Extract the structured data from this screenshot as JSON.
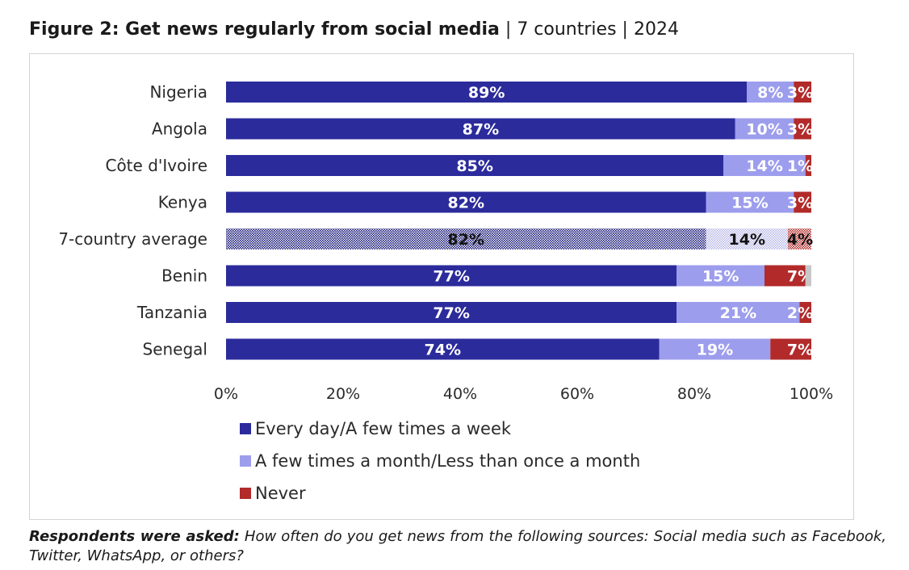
{
  "header": {
    "title_main": "Figure 2: Get news regularly from social media",
    "title_sep1": "|",
    "title_scope": "7 countries",
    "title_sep2": "|",
    "title_year": "2024"
  },
  "footnote": {
    "lead": "Respondents were asked:",
    "question": "How often do you get news from the following sources: Social media such as Facebook, Twitter, WhatsApp, or others?"
  },
  "colors": {
    "series": [
      "#2b2b9c",
      "#9d9ded",
      "#b22a2a"
    ],
    "other": "#c8c8c8",
    "average_pattern": "#1c1c7a"
  },
  "chart_data": {
    "type": "bar",
    "orientation": "horizontal",
    "stacked": true,
    "title": "Get news regularly from social media",
    "categories": [
      "Nigeria",
      "Angola",
      "Côte d'Ivoire",
      "Kenya",
      "7-country average",
      "Benin",
      "Tanzania",
      "Senegal"
    ],
    "highlight_category": "7-country average",
    "series": [
      {
        "name": "Every day/A few times a week",
        "values": [
          89,
          87,
          85,
          82,
          82,
          77,
          77,
          74
        ],
        "labels": [
          "89%",
          "87%",
          "85%",
          "82%",
          "82%",
          "77%",
          "77%",
          "74%"
        ]
      },
      {
        "name": "A few times a month/Less than once a month",
        "values": [
          8,
          10,
          14,
          15,
          14,
          15,
          21,
          19
        ],
        "labels": [
          "8%",
          "10%",
          "14%",
          "15%",
          "14%",
          "15%",
          "21%",
          "19%"
        ]
      },
      {
        "name": "Never",
        "values": [
          3,
          3,
          1,
          3,
          4,
          7,
          2,
          7
        ],
        "labels": [
          "3%",
          "3%",
          "1%",
          "3%",
          "4%",
          "7%",
          "2%",
          "7%"
        ]
      }
    ],
    "xlim": [
      0,
      100
    ],
    "xticks": [
      "0%",
      "20%",
      "40%",
      "60%",
      "80%",
      "100%"
    ],
    "xtick_values": [
      0,
      20,
      40,
      60,
      80,
      100
    ],
    "legend_position": "bottom-left",
    "grid": false
  }
}
